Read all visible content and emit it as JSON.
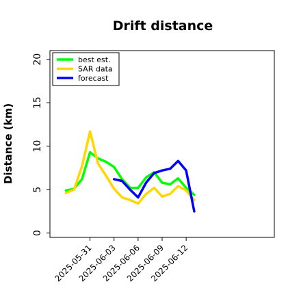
{
  "chart_data": {
    "type": "line",
    "title": "Drift distance",
    "xlabel": "",
    "ylabel": "Distance (km)",
    "ylim": [
      -0.5,
      21
    ],
    "xlim": [
      -3,
      25
    ],
    "yticks": [
      "0",
      "5",
      "10",
      "15",
      "20"
    ],
    "xticks": [
      {
        "x": 2,
        "label": "2025-05-31"
      },
      {
        "x": 5,
        "label": "2025-06-03"
      },
      {
        "x": 8,
        "label": "2025-06-06"
      },
      {
        "x": 11,
        "label": "2025-06-09"
      },
      {
        "x": 14,
        "label": "2025-06-12"
      }
    ],
    "grid": false,
    "legend_position": "top-left",
    "series": [
      {
        "name": "best est.",
        "color": "#00ff00",
        "points": [
          [
            -1,
            4.9
          ],
          [
            0,
            5.1
          ],
          [
            1,
            6.2
          ],
          [
            2,
            9.3
          ],
          [
            3,
            8.6
          ],
          [
            4,
            8.2
          ],
          [
            5,
            7.6
          ],
          [
            6,
            6.2
          ],
          [
            7,
            5.2
          ],
          [
            8,
            5.2
          ],
          [
            9,
            6.4
          ],
          [
            10,
            7.0
          ],
          [
            11,
            5.8
          ],
          [
            12,
            5.6
          ],
          [
            13,
            6.3
          ],
          [
            14,
            5.2
          ],
          [
            15,
            4.4
          ]
        ]
      },
      {
        "name": "SAR data",
        "color": "#ffd700",
        "points": [
          [
            -1,
            4.6
          ],
          [
            0,
            5.0
          ],
          [
            1,
            7.7
          ],
          [
            2,
            11.7
          ],
          [
            3,
            8.0
          ],
          [
            4,
            6.6
          ],
          [
            5,
            5.1
          ],
          [
            6,
            4.1
          ],
          [
            7,
            3.8
          ],
          [
            8,
            3.4
          ],
          [
            9,
            4.5
          ],
          [
            10,
            5.2
          ],
          [
            11,
            4.2
          ],
          [
            12,
            4.5
          ],
          [
            13,
            5.4
          ],
          [
            14,
            4.9
          ],
          [
            15,
            3.8
          ]
        ]
      },
      {
        "name": "forecast",
        "color": "#0000ff",
        "points": [
          [
            5,
            6.2
          ],
          [
            6,
            6.0
          ],
          [
            7,
            5.0
          ],
          [
            8,
            4.1
          ],
          [
            9,
            5.8
          ],
          [
            10,
            6.9
          ],
          [
            11,
            7.2
          ],
          [
            12,
            7.4
          ],
          [
            13,
            8.3
          ],
          [
            14,
            7.2
          ],
          [
            15,
            2.5
          ]
        ]
      }
    ]
  }
}
